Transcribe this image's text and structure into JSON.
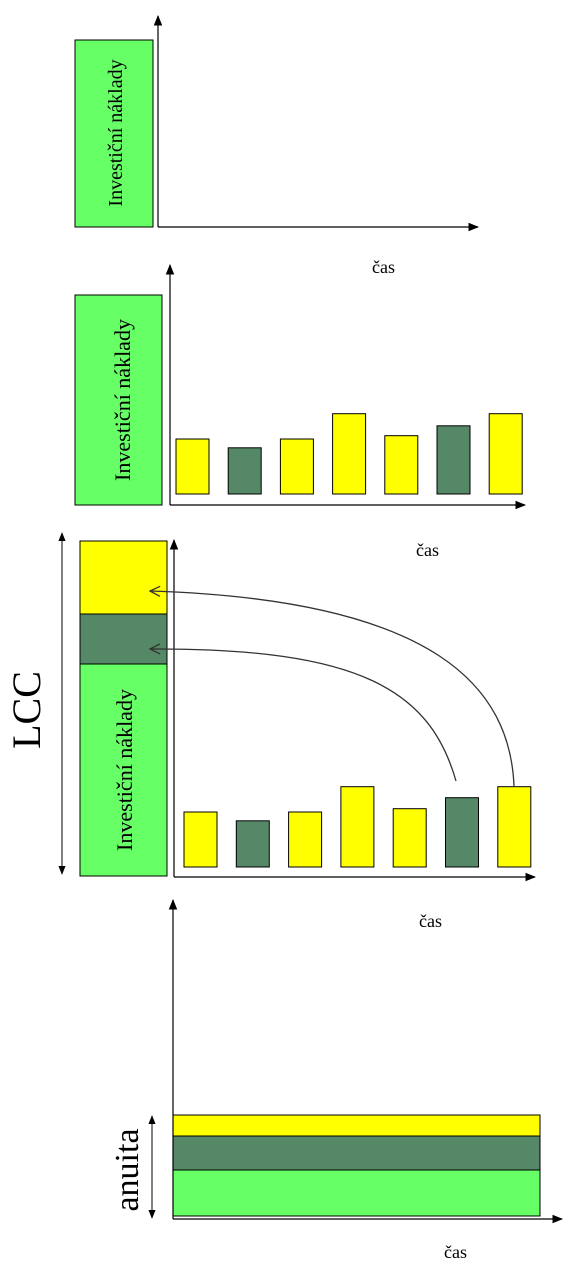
{
  "colors": {
    "investment": "#66ff66",
    "yellow": "#ffff00",
    "dark": "#558866",
    "line": "#000000"
  },
  "panels": {
    "panel1": {
      "investment_label": "Investiční náklady",
      "x_axis_label": "čas"
    },
    "panel2": {
      "investment_label": "Investiční náklady",
      "x_axis_label": "čas",
      "bars": [
        {
          "color": "yellow",
          "relative_height": 0.5
        },
        {
          "color": "dark",
          "relative_height": 0.42
        },
        {
          "color": "yellow",
          "relative_height": 0.5
        },
        {
          "color": "yellow",
          "relative_height": 0.73
        },
        {
          "color": "yellow",
          "relative_height": 0.53
        },
        {
          "color": "dark",
          "relative_height": 0.62
        },
        {
          "color": "yellow",
          "relative_height": 0.73
        }
      ]
    },
    "panel3": {
      "investment_label": "Investiční náklady",
      "x_axis_label": "čas",
      "total_label": "LCC",
      "bars": [
        {
          "color": "yellow",
          "relative_height": 0.5
        },
        {
          "color": "dark",
          "relative_height": 0.42
        },
        {
          "color": "yellow",
          "relative_height": 0.5
        },
        {
          "color": "yellow",
          "relative_height": 0.73
        },
        {
          "color": "yellow",
          "relative_height": 0.53
        },
        {
          "color": "dark",
          "relative_height": 0.63
        },
        {
          "color": "yellow",
          "relative_height": 0.73
        }
      ]
    },
    "panel4": {
      "x_axis_label": "čas",
      "annuity_label": "anuita",
      "bands": [
        "yellow",
        "dark",
        "investment"
      ]
    }
  }
}
